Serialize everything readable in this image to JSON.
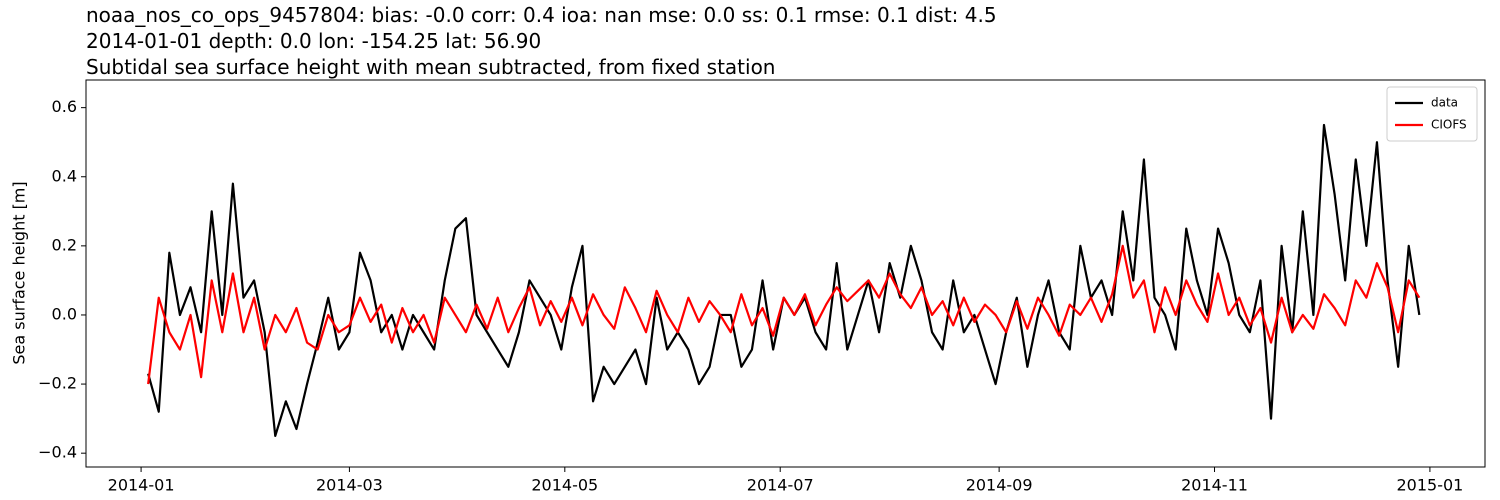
{
  "chart_data": {
    "type": "line",
    "title": [
      "noaa_nos_co_ops_9457804: bias: -0.0  corr: 0.4  ioa: nan  mse: 0.0  ss: 0.1  rmse: 0.1  dist: 4.5",
      "2014-01-01 depth: 0.0 lon: -154.25 lat: 56.90",
      "Subtidal sea surface height with mean subtracted, from fixed station"
    ],
    "ylabel": "Sea surface height [m]",
    "legend": "upper right",
    "grid": false,
    "xlim": [
      -15.6,
      380.6
    ],
    "xticks": [
      {
        "value": 0,
        "label": "2014-01"
      },
      {
        "value": 59,
        "label": "2014-03"
      },
      {
        "value": 120,
        "label": "2014-05"
      },
      {
        "value": 181,
        "label": "2014-07"
      },
      {
        "value": 243,
        "label": "2014-09"
      },
      {
        "value": 304,
        "label": "2014-11"
      },
      {
        "value": 365,
        "label": "2015-01"
      }
    ],
    "ylim": [
      -0.44,
      0.68
    ],
    "yticks": [
      {
        "value": -0.4,
        "label": "−0.4"
      },
      {
        "value": -0.2,
        "label": "−0.2"
      },
      {
        "value": 0,
        "label": "0.0"
      },
      0.2,
      0.4,
      0.6
    ],
    "x": [
      2,
      5,
      8,
      11,
      14,
      17,
      20,
      23,
      26,
      29,
      32,
      35,
      38,
      41,
      44,
      47,
      50,
      53,
      56,
      59,
      62,
      65,
      68,
      71,
      74,
      77,
      80,
      83,
      86,
      89,
      92,
      95,
      98,
      101,
      104,
      107,
      110,
      113,
      116,
      119,
      122,
      125,
      128,
      131,
      134,
      137,
      140,
      143,
      146,
      149,
      152,
      155,
      158,
      161,
      164,
      167,
      170,
      173,
      176,
      179,
      182,
      185,
      188,
      191,
      194,
      197,
      200,
      203,
      206,
      209,
      212,
      215,
      218,
      221,
      224,
      227,
      230,
      233,
      236,
      239,
      242,
      245,
      248,
      251,
      254,
      257,
      260,
      263,
      266,
      269,
      272,
      275,
      278,
      281,
      284,
      287,
      290,
      293,
      296,
      299,
      302,
      305,
      308,
      311,
      314,
      317,
      320,
      323,
      326,
      329,
      332,
      335,
      338,
      341,
      344,
      347,
      350,
      353,
      356,
      359,
      362
    ],
    "series": [
      {
        "name": "data",
        "color": "#000000",
        "values": [
          -0.17,
          -0.28,
          0.18,
          0.0,
          0.08,
          -0.05,
          0.3,
          0.0,
          0.38,
          0.05,
          0.1,
          -0.05,
          -0.35,
          -0.25,
          -0.33,
          -0.2,
          -0.08,
          0.05,
          -0.1,
          -0.05,
          0.18,
          0.1,
          -0.05,
          0.0,
          -0.1,
          0.0,
          -0.05,
          -0.1,
          0.1,
          0.25,
          0.28,
          0.0,
          -0.05,
          -0.1,
          -0.15,
          -0.05,
          0.1,
          0.05,
          0.0,
          -0.1,
          0.08,
          0.2,
          -0.25,
          -0.15,
          -0.2,
          -0.15,
          -0.1,
          -0.2,
          0.05,
          -0.1,
          -0.05,
          -0.1,
          -0.2,
          -0.15,
          0.0,
          0.0,
          -0.15,
          -0.1,
          0.1,
          -0.1,
          0.05,
          0.0,
          0.05,
          -0.05,
          -0.1,
          0.15,
          -0.1,
          0.0,
          0.1,
          -0.05,
          0.15,
          0.05,
          0.2,
          0.1,
          -0.05,
          -0.1,
          0.1,
          -0.05,
          0.0,
          -0.1,
          -0.2,
          -0.05,
          0.05,
          -0.15,
          0.0,
          0.1,
          -0.05,
          -0.1,
          0.2,
          0.05,
          0.1,
          0.0,
          0.3,
          0.1,
          0.45,
          0.05,
          0.0,
          -0.1,
          0.25,
          0.1,
          0.0,
          0.25,
          0.15,
          0.0,
          -0.05,
          0.1,
          -0.3,
          0.2,
          -0.05,
          0.3,
          0.0,
          0.55,
          0.35,
          0.1,
          0.45,
          0.2,
          0.5,
          0.1,
          -0.15,
          0.2,
          0.0
        ]
      },
      {
        "name": "CIOFS",
        "color": "#ff0000",
        "values": [
          -0.2,
          0.05,
          -0.05,
          -0.1,
          0.0,
          -0.18,
          0.1,
          -0.05,
          0.12,
          -0.05,
          0.05,
          -0.1,
          0.0,
          -0.05,
          0.02,
          -0.08,
          -0.1,
          0.0,
          -0.05,
          -0.03,
          0.05,
          -0.02,
          0.03,
          -0.08,
          0.02,
          -0.05,
          0.0,
          -0.08,
          0.05,
          0.0,
          -0.05,
          0.03,
          -0.04,
          0.05,
          -0.05,
          0.02,
          0.08,
          -0.03,
          0.04,
          -0.02,
          0.05,
          -0.03,
          0.06,
          0.0,
          -0.04,
          0.08,
          0.02,
          -0.05,
          0.07,
          0.0,
          -0.05,
          0.05,
          -0.02,
          0.04,
          0.0,
          -0.05,
          0.06,
          -0.03,
          0.02,
          -0.06,
          0.05,
          0.0,
          0.06,
          -0.03,
          0.03,
          0.08,
          0.04,
          0.07,
          0.1,
          0.05,
          0.12,
          0.06,
          0.02,
          0.08,
          0.0,
          0.04,
          -0.03,
          0.05,
          -0.02,
          0.03,
          0.0,
          -0.05,
          0.04,
          -0.04,
          0.05,
          0.0,
          -0.06,
          0.03,
          0.0,
          0.05,
          -0.02,
          0.06,
          0.2,
          0.05,
          0.1,
          -0.05,
          0.08,
          0.0,
          0.1,
          0.03,
          -0.02,
          0.12,
          0.0,
          0.05,
          -0.03,
          0.02,
          -0.08,
          0.05,
          -0.05,
          0.0,
          -0.04,
          0.06,
          0.02,
          -0.03,
          0.1,
          0.05,
          0.15,
          0.08,
          -0.05,
          0.1,
          0.05
        ]
      }
    ]
  }
}
